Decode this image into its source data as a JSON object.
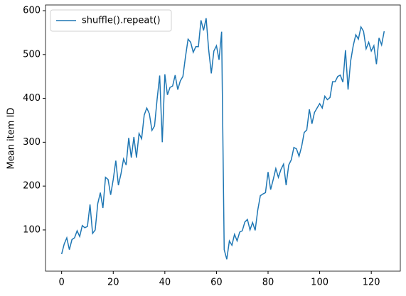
{
  "chart_data": {
    "type": "line",
    "y_label": "Mean item ID",
    "x": [
      0,
      1,
      2,
      3,
      4,
      5,
      6,
      7,
      8,
      9,
      10,
      11,
      12,
      13,
      14,
      15,
      16,
      17,
      18,
      19,
      20,
      21,
      22,
      23,
      24,
      25,
      26,
      27,
      28,
      29,
      30,
      31,
      32,
      33,
      34,
      35,
      36,
      37,
      38,
      39,
      40,
      41,
      42,
      43,
      44,
      45,
      46,
      47,
      48,
      49,
      50,
      51,
      52,
      53,
      54,
      55,
      56,
      57,
      58,
      59,
      60,
      61,
      62,
      63,
      64,
      65,
      66,
      67,
      68,
      69,
      70,
      71,
      72,
      73,
      74,
      75,
      76,
      77,
      78,
      79,
      80,
      81,
      82,
      83,
      84,
      85,
      86,
      87,
      88,
      89,
      90,
      91,
      92,
      93,
      94,
      95,
      96,
      97,
      98,
      99,
      100,
      101,
      102,
      103,
      104,
      105,
      106,
      107,
      108,
      109,
      110,
      111,
      112,
      113,
      114,
      115,
      116,
      117,
      118,
      119,
      120,
      121,
      122,
      123,
      124,
      125
    ],
    "series": [
      {
        "name": "shuffle().repeat()",
        "color": "#1f77b4",
        "values": [
          45,
          68,
          82,
          55,
          78,
          82,
          98,
          85,
          110,
          105,
          108,
          158,
          92,
          100,
          160,
          185,
          150,
          220,
          215,
          180,
          215,
          258,
          202,
          228,
          262,
          248,
          310,
          265,
          312,
          265,
          320,
          308,
          362,
          378,
          365,
          327,
          337,
          398,
          452,
          300,
          455,
          408,
          425,
          428,
          453,
          420,
          440,
          450,
          495,
          535,
          528,
          505,
          518,
          518,
          578,
          555,
          583,
          510,
          457,
          508,
          520,
          488,
          552,
          55,
          33,
          75,
          65,
          90,
          75,
          95,
          98,
          118,
          124,
          100,
          117,
          99,
          145,
          178,
          182,
          185,
          232,
          192,
          215,
          240,
          220,
          238,
          250,
          202,
          248,
          260,
          288,
          285,
          268,
          290,
          322,
          328,
          375,
          342,
          368,
          378,
          388,
          378,
          405,
          397,
          402,
          438,
          438,
          450,
          453,
          437,
          510,
          420,
          485,
          520,
          545,
          535,
          563,
          553,
          513,
          528,
          508,
          520,
          478,
          538,
          522,
          553
        ]
      }
    ],
    "xlim": [
      -6.25,
      131.25
    ],
    "xticks": [
      0,
      20,
      40,
      60,
      80,
      100,
      120
    ],
    "ylim": [
      6,
      613
    ],
    "yticks": [
      100,
      200,
      300,
      400,
      500,
      600
    ],
    "legend": "upper left"
  }
}
